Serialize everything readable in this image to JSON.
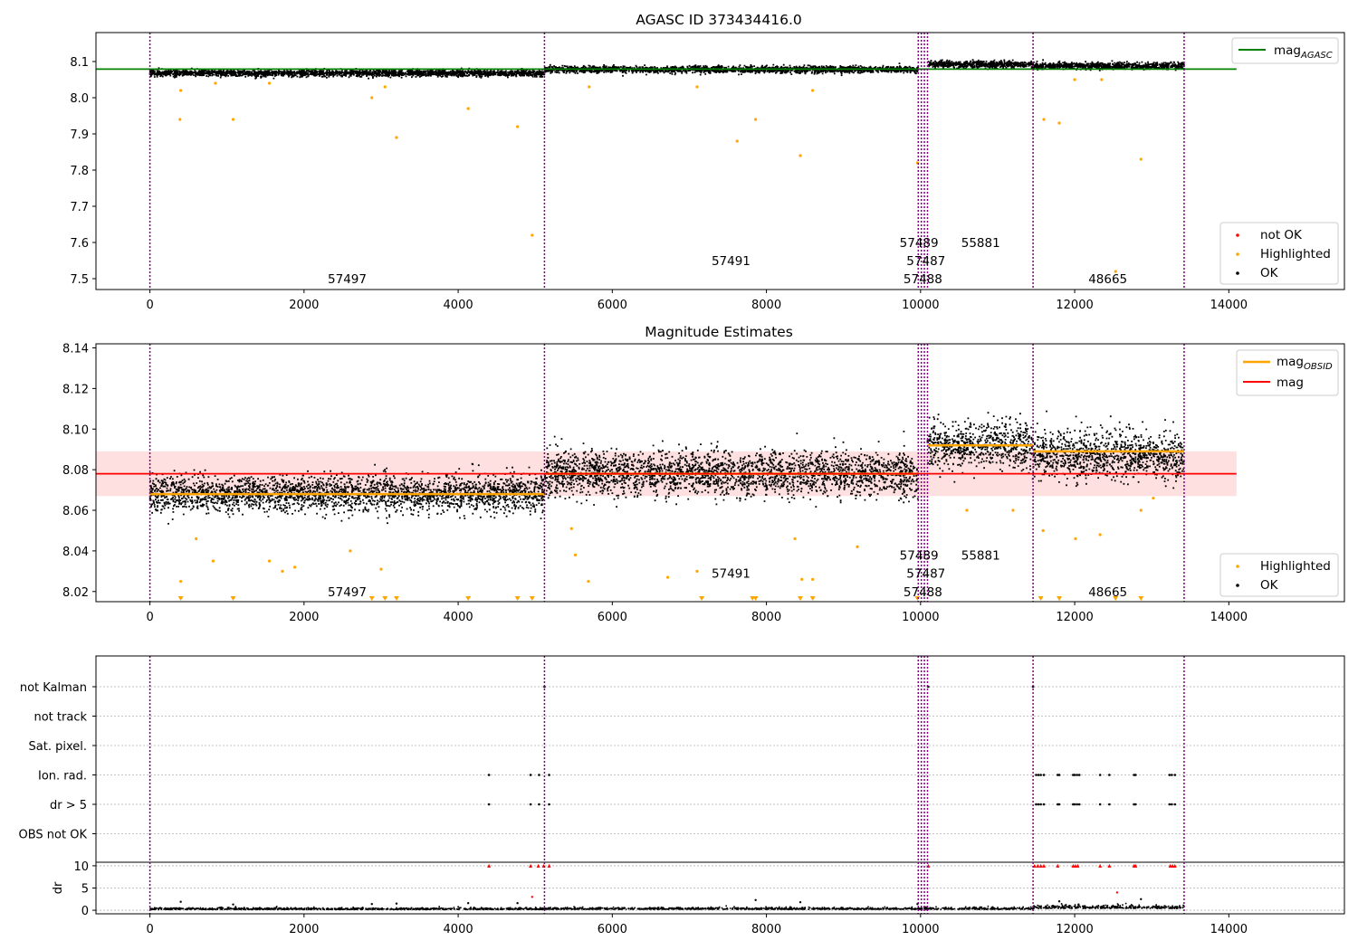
{
  "chart_data": [
    {
      "type": "scatter",
      "title": "AGASC ID 373434416.0",
      "xlabel": "",
      "ylabel": "",
      "xlim": [
        -700,
        15500
      ],
      "ylim": [
        7.47,
        8.18
      ],
      "grid": false,
      "xticks": [
        0,
        2000,
        4000,
        6000,
        8000,
        10000,
        12000,
        14000
      ],
      "yticks": [
        7.5,
        7.6,
        7.7,
        7.8,
        7.9,
        8.0,
        8.1
      ],
      "ytick_labels": [
        "7.5",
        "7.6",
        "7.7",
        "7.8",
        "7.9",
        "8.0",
        "8.1"
      ],
      "obs_boundaries": [
        0,
        5120,
        9970,
        10010,
        10050,
        10090,
        11460,
        13420
      ],
      "reference_lines": [
        {
          "name": "mag_AGASC",
          "label_main": "mag",
          "label_sub": "AGASC",
          "y": 8.079,
          "x_range": [
            -700,
            14100
          ],
          "color": "#008000"
        }
      ],
      "segments": [
        {
          "x_range": [
            0,
            5120
          ],
          "center": 8.068,
          "spread": 0.0045
        },
        {
          "x_range": [
            5120,
            9970
          ],
          "center": 8.078,
          "spread": 0.0045
        },
        {
          "x_range": [
            10090,
            11460
          ],
          "center": 8.092,
          "spread": 0.0045
        },
        {
          "x_range": [
            11460,
            13420
          ],
          "center": 8.088,
          "spread": 0.0045
        }
      ],
      "highlighted_points": [
        [
          390,
          7.94
        ],
        [
          1080,
          7.94
        ],
        [
          2880,
          8.0
        ],
        [
          3200,
          7.89
        ],
        [
          4130,
          7.97
        ],
        [
          4770,
          7.92
        ],
        [
          4960,
          7.62
        ],
        [
          7620,
          7.88
        ],
        [
          7860,
          7.94
        ],
        [
          8440,
          7.84
        ],
        [
          9960,
          7.82
        ],
        [
          11800,
          7.93
        ],
        [
          11600,
          7.94
        ],
        [
          12530,
          7.52
        ],
        [
          12860,
          7.83
        ],
        [
          400,
          8.02
        ],
        [
          850,
          8.04
        ],
        [
          1550,
          8.04
        ],
        [
          3050,
          8.03
        ],
        [
          5700,
          8.03
        ],
        [
          7100,
          8.03
        ],
        [
          8600,
          8.02
        ],
        [
          12000,
          8.05
        ],
        [
          12350,
          8.05
        ]
      ],
      "obsid_labels": [
        {
          "text": "57497",
          "x": 2560,
          "y": 7.5
        },
        {
          "text": "57491",
          "x": 7540,
          "y": 7.55
        },
        {
          "text": "57489",
          "x": 9980,
          "y": 7.6
        },
        {
          "text": "57487",
          "x": 10070,
          "y": 7.55
        },
        {
          "text": "57488",
          "x": 10030,
          "y": 7.5
        },
        {
          "text": "55881",
          "x": 10780,
          "y": 7.6
        },
        {
          "text": "48665",
          "x": 12430,
          "y": 7.5
        }
      ],
      "legends": [
        {
          "position": "upper-right",
          "entries": [
            {
              "kind": "line",
              "label_main": "mag",
              "label_sub": "AGASC",
              "color": "#008000"
            }
          ]
        },
        {
          "position": "lower-right",
          "entries": [
            {
              "kind": "dot",
              "label": "not OK",
              "color": "#ff0000"
            },
            {
              "kind": "dot",
              "label": "Highlighted",
              "color": "#ffa500"
            },
            {
              "kind": "dot",
              "label": "OK",
              "color": "#000000"
            }
          ]
        }
      ]
    },
    {
      "type": "scatter",
      "title": "Magnitude Estimates",
      "xlabel": "",
      "ylabel": "",
      "xlim": [
        -700,
        15500
      ],
      "ylim": [
        8.015,
        8.142
      ],
      "grid": false,
      "xticks": [
        0,
        2000,
        4000,
        6000,
        8000,
        10000,
        12000,
        14000
      ],
      "yticks": [
        8.02,
        8.04,
        8.06,
        8.08,
        8.1,
        8.12,
        8.14
      ],
      "ytick_labels": [
        "8.02",
        "8.04",
        "8.06",
        "8.08",
        "8.10",
        "8.12",
        "8.14"
      ],
      "obs_boundaries": [
        0,
        5120,
        9970,
        10010,
        10050,
        10090,
        11460,
        13420
      ],
      "mag": {
        "y": 8.078,
        "band": [
          8.067,
          8.089
        ],
        "x_range": [
          -700,
          14100
        ],
        "color": "#ff0000",
        "band_color": "#ffe0e0"
      },
      "obsid_means": [
        {
          "x_range": [
            0,
            5120
          ],
          "y": 8.068
        },
        {
          "x_range": [
            5120,
            9970
          ],
          "y": 8.078
        },
        {
          "x_range": [
            10090,
            11460
          ],
          "y": 8.092
        },
        {
          "x_range": [
            11460,
            13420
          ],
          "y": 8.089
        }
      ],
      "segments": [
        {
          "x_range": [
            0,
            5120
          ],
          "center": 8.068,
          "spread": 0.0045
        },
        {
          "x_range": [
            5120,
            9970
          ],
          "center": 8.078,
          "spread": 0.0055
        },
        {
          "x_range": [
            10090,
            11460
          ],
          "center": 8.092,
          "spread": 0.0055
        },
        {
          "x_range": [
            11460,
            13420
          ],
          "center": 8.087,
          "spread": 0.0058
        }
      ],
      "highlighted_points": [
        [
          400,
          8.025
        ],
        [
          600,
          8.046
        ],
        [
          820,
          8.035
        ],
        [
          1550,
          8.035
        ],
        [
          1720,
          8.03
        ],
        [
          1880,
          8.032
        ],
        [
          2600,
          8.04
        ],
        [
          3000,
          8.031
        ],
        [
          5470,
          8.051
        ],
        [
          5690,
          8.025
        ],
        [
          5520,
          8.038
        ],
        [
          6720,
          8.027
        ],
        [
          7100,
          8.03
        ],
        [
          8370,
          8.046
        ],
        [
          8460,
          8.026
        ],
        [
          8600,
          8.026
        ],
        [
          9180,
          8.042
        ],
        [
          10600,
          8.06
        ],
        [
          11200,
          8.06
        ],
        [
          11590,
          8.05
        ],
        [
          12010,
          8.046
        ],
        [
          12330,
          8.048
        ],
        [
          12860,
          8.06
        ],
        [
          13020,
          8.066
        ]
      ],
      "clipped_points_x": [
        400,
        1080,
        2880,
        3050,
        3200,
        4130,
        4770,
        4960,
        7160,
        7820,
        7860,
        8440,
        8600,
        9960,
        11560,
        11800,
        12530,
        12860
      ],
      "obsid_labels": [
        {
          "text": "57497",
          "x": 2560,
          "y": 8.02
        },
        {
          "text": "57491",
          "x": 7540,
          "y": 8.029
        },
        {
          "text": "57489",
          "x": 9980,
          "y": 8.038
        },
        {
          "text": "57487",
          "x": 10070,
          "y": 8.029
        },
        {
          "text": "57488",
          "x": 10030,
          "y": 8.02
        },
        {
          "text": "55881",
          "x": 10780,
          "y": 8.038
        },
        {
          "text": "48665",
          "x": 12430,
          "y": 8.02
        }
      ],
      "legends": [
        {
          "position": "upper-right",
          "entries": [
            {
              "kind": "line",
              "label_main": "mag",
              "label_sub": "OBSID",
              "color": "#ffa500"
            },
            {
              "kind": "line",
              "label_main": "mag",
              "label_sub": "",
              "color": "#ff0000"
            }
          ]
        },
        {
          "position": "lower-right",
          "entries": [
            {
              "kind": "dot",
              "label": "Highlighted",
              "color": "#ffa500"
            },
            {
              "kind": "dot",
              "label": "OK",
              "color": "#000000"
            }
          ]
        }
      ]
    },
    {
      "type": "scatter",
      "title": "",
      "xlabel": "",
      "ylabel": "",
      "xlim": [
        -700,
        15500
      ],
      "grid": true,
      "xticks": [
        0,
        2000,
        4000,
        6000,
        8000,
        10000,
        12000,
        14000
      ],
      "flag_rows": [
        "not Kalman",
        "not track",
        "Sat. pixel.",
        "Ion. rad.",
        "dr > 5",
        "OBS not OK"
      ],
      "flag_points": [
        {
          "row": "not Kalman",
          "x": [
            5120,
            10100,
            11460
          ]
        },
        {
          "row": "Ion. rad.",
          "x": [
            4400,
            4940,
            5050,
            5180,
            11500,
            11530,
            11560,
            11600,
            11780,
            11800,
            11980,
            12000,
            12030,
            12060,
            12330,
            12450,
            12770,
            12790,
            13230,
            13260,
            13300
          ]
        },
        {
          "row": "dr > 5",
          "x": [
            4400,
            4940,
            5050,
            5180,
            11500,
            11530,
            11560,
            11600,
            11780,
            11800,
            11980,
            12000,
            12030,
            12060,
            12330,
            12450,
            12770,
            12790,
            13230,
            13260,
            13300
          ]
        }
      ],
      "dr_axis": {
        "ylabel": "dr",
        "yticks": [
          0,
          5,
          10
        ],
        "ylim": [
          -0.8,
          10.8
        ]
      },
      "dr_clipped_x": [
        4400,
        4940,
        5040,
        5110,
        5180,
        10100,
        11480,
        11520,
        11560,
        11600,
        11780,
        11980,
        12010,
        12040,
        12330,
        12450,
        12770,
        12790,
        13240,
        13270,
        13300
      ],
      "dr_points": [
        [
          400,
          1.9
        ],
        [
          1080,
          1.3
        ],
        [
          2880,
          1.4
        ],
        [
          3200,
          1.5
        ],
        [
          4130,
          1.6
        ],
        [
          4770,
          1.6
        ],
        [
          4960,
          3.0
        ],
        [
          7860,
          2.3
        ],
        [
          8440,
          1.8
        ],
        [
          9960,
          1.4
        ],
        [
          11800,
          2.0
        ],
        [
          12050,
          1.3
        ],
        [
          12550,
          4.0
        ],
        [
          12860,
          2.5
        ]
      ],
      "dr_baseline": [
        {
          "x_range": [
            0,
            5120
          ],
          "center": 0.15,
          "spread": 0.2
        },
        {
          "x_range": [
            5120,
            11460
          ],
          "center": 0.2,
          "spread": 0.2
        },
        {
          "x_range": [
            11460,
            13420
          ],
          "center": 0.4,
          "spread": 0.35
        }
      ],
      "obs_boundaries": [
        0,
        5120,
        9970,
        10010,
        10050,
        10090,
        11460,
        13420
      ]
    }
  ]
}
